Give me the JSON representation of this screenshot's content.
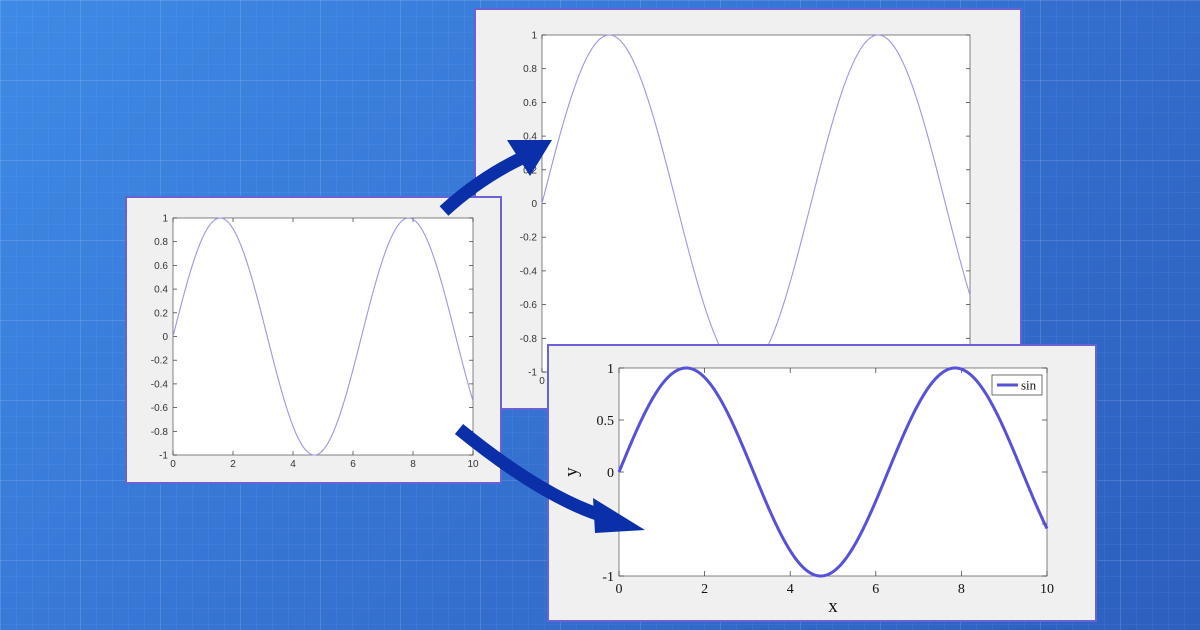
{
  "colors": {
    "thin_line": "#9a96e6",
    "thick_line": "#5751d8",
    "arrow": "#0a2fa8",
    "frame": "#6a62d4"
  },
  "chart_data": [
    {
      "id": "small",
      "type": "line",
      "function": "sin",
      "x_range": [
        0,
        10
      ],
      "ylim": [
        -1,
        1
      ],
      "xticks": [
        0,
        2,
        4,
        6,
        8,
        10
      ],
      "xtick_labels": [
        "0",
        "2",
        "4",
        "6",
        "8",
        "10"
      ],
      "yticks": [
        -1,
        -0.8,
        -0.6,
        -0.4,
        -0.2,
        0,
        0.2,
        0.4,
        0.6,
        0.8,
        1
      ],
      "ytick_labels": [
        "-1",
        "-0.8",
        "-0.6",
        "-0.4",
        "-0.2",
        "0",
        "0.2",
        "0.4",
        "0.6",
        "0.8",
        "1"
      ],
      "xlabel": "",
      "ylabel": "",
      "grid": false,
      "series": [
        {
          "expr": "sin(x)"
        }
      ]
    },
    {
      "id": "large",
      "type": "line",
      "function": "sin",
      "x_range": [
        0,
        10
      ],
      "ylim": [
        -1,
        1
      ],
      "xticks": [
        0
      ],
      "xtick_labels": [
        "0"
      ],
      "yticks": [
        -1,
        -0.8,
        -0.6,
        -0.4,
        -0.2,
        0,
        0.2,
        0.4,
        0.6,
        0.8,
        1
      ],
      "ytick_labels": [
        "-1",
        "-0.8",
        "-0.6",
        "-0.4",
        "-0.2",
        "0",
        "0.2",
        "0.4",
        "0.6",
        "0.8",
        "1"
      ],
      "xlabel": "",
      "ylabel": "",
      "grid": false,
      "series": [
        {
          "expr": "sin(x)"
        }
      ]
    },
    {
      "id": "styled",
      "type": "line",
      "function": "sin",
      "x_range": [
        0,
        10
      ],
      "ylim": [
        -1,
        1
      ],
      "xticks": [
        0,
        2,
        4,
        6,
        8,
        10
      ],
      "xtick_labels": [
        "0",
        "2",
        "4",
        "6",
        "8",
        "10"
      ],
      "yticks": [
        -1,
        -0.5,
        0,
        0.5,
        1
      ],
      "ytick_labels": [
        "-1",
        "",
        "0",
        "0.5",
        "1"
      ],
      "xlabel": "x",
      "ylabel": "y",
      "grid": false,
      "legend": {
        "placement": "top-right",
        "entries": [
          "sin"
        ]
      },
      "series": [
        {
          "name": "sin",
          "expr": "sin(x)"
        }
      ]
    }
  ]
}
